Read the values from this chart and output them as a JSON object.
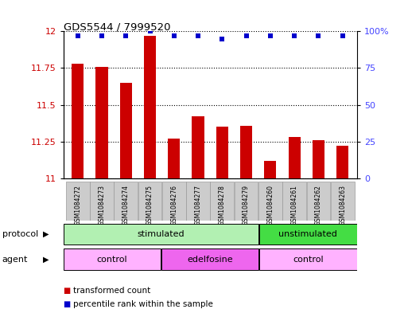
{
  "title": "GDS5544 / 7999520",
  "samples": [
    "GSM1084272",
    "GSM1084273",
    "GSM1084274",
    "GSM1084275",
    "GSM1084276",
    "GSM1084277",
    "GSM1084278",
    "GSM1084279",
    "GSM1084260",
    "GSM1084261",
    "GSM1084262",
    "GSM1084263"
  ],
  "bar_values": [
    11.78,
    11.76,
    11.65,
    11.97,
    11.27,
    11.42,
    11.35,
    11.36,
    11.12,
    11.28,
    11.26,
    11.22
  ],
  "percentile_values": [
    97,
    97,
    97,
    100,
    97,
    97,
    95,
    97,
    97,
    97,
    97,
    97
  ],
  "bar_color": "#cc0000",
  "dot_color": "#0000cc",
  "ylim_left": [
    11.0,
    12.0
  ],
  "ylim_right": [
    0,
    100
  ],
  "yticks_left": [
    11.0,
    11.25,
    11.5,
    11.75,
    12.0
  ],
  "ytick_labels_left": [
    "11",
    "11.25",
    "11.5",
    "11.75",
    "12"
  ],
  "yticks_right": [
    0,
    25,
    50,
    75,
    100
  ],
  "ytick_labels_right": [
    "0",
    "25",
    "50",
    "75",
    "100%"
  ],
  "protocol_row": [
    {
      "label": "stimulated",
      "start": 0,
      "end": 8,
      "color": "#b2f0b2"
    },
    {
      "label": "unstimulated",
      "start": 8,
      "end": 12,
      "color": "#44dd44"
    }
  ],
  "agent_row": [
    {
      "label": "control",
      "start": 0,
      "end": 4,
      "color": "#ffb2ff"
    },
    {
      "label": "edelfosine",
      "start": 4,
      "end": 8,
      "color": "#ee66ee"
    },
    {
      "label": "control",
      "start": 8,
      "end": 12,
      "color": "#ffb2ff"
    }
  ],
  "legend_items": [
    {
      "label": "transformed count",
      "color": "#cc0000"
    },
    {
      "label": "percentile rank within the sample",
      "color": "#0000cc"
    }
  ],
  "protocol_label": "protocol",
  "agent_label": "agent",
  "bg_color": "#ffffff",
  "tick_label_color_left": "#cc0000",
  "tick_label_color_right": "#4444ff",
  "bar_width": 0.5,
  "sample_box_color": "#cccccc"
}
